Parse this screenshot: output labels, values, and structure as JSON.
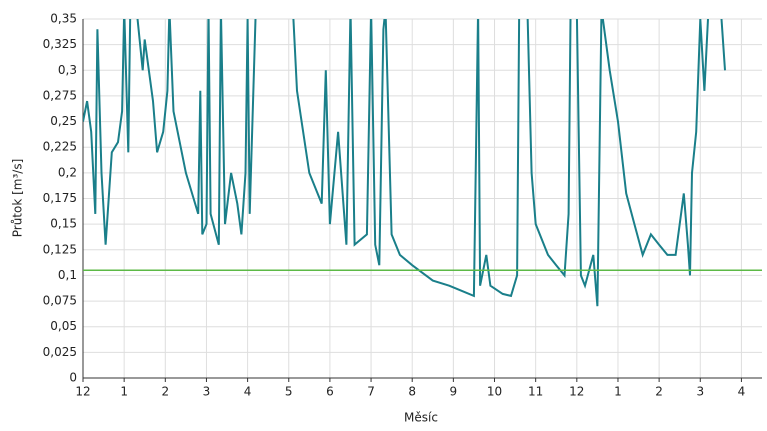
{
  "chart_data": {
    "type": "line",
    "y_label": "Průtok [m³/s]",
    "x_label": "Měsíc",
    "xlim": [
      0,
      16.5
    ],
    "ylim": [
      0,
      0.35
    ],
    "grid": true,
    "xticks": [
      {
        "value": 0,
        "label": "12"
      },
      {
        "value": 1,
        "label": "1"
      },
      {
        "value": 2,
        "label": "2"
      },
      {
        "value": 3,
        "label": "3"
      },
      {
        "value": 4,
        "label": "4"
      },
      {
        "value": 5,
        "label": "5"
      },
      {
        "value": 6,
        "label": "6"
      },
      {
        "value": 7,
        "label": "7"
      },
      {
        "value": 8,
        "label": "8"
      },
      {
        "value": 9,
        "label": "9"
      },
      {
        "value": 10,
        "label": "10"
      },
      {
        "value": 11,
        "label": "11"
      },
      {
        "value": 12,
        "label": "12"
      },
      {
        "value": 13,
        "label": "1"
      },
      {
        "value": 14,
        "label": "2"
      },
      {
        "value": 15,
        "label": "3"
      },
      {
        "value": 16,
        "label": "4"
      }
    ],
    "yticks": [
      0,
      {
        "value": 0.025,
        "label": "0,025"
      },
      {
        "value": 0.05,
        "label": "0,05"
      },
      {
        "value": 0.075,
        "label": "0,075"
      },
      {
        "value": 0.1,
        "label": "0,1"
      },
      {
        "value": 0.125,
        "label": "0,125"
      },
      {
        "value": 0.15,
        "label": "0,15"
      },
      {
        "value": 0.175,
        "label": "0,175"
      },
      {
        "value": 0.2,
        "label": "0,2"
      },
      {
        "value": 0.225,
        "label": "0,225"
      },
      {
        "value": 0.25,
        "label": "0,25"
      },
      {
        "value": 0.275,
        "label": "0,275"
      },
      {
        "value": 0.3,
        "label": "0,3"
      },
      {
        "value": 0.325,
        "label": "0,325"
      },
      {
        "value": 0.35,
        "label": "0,35"
      }
    ],
    "reference_lines": [
      {
        "value": 0.105,
        "color": "#5cb946"
      }
    ],
    "series": [
      {
        "color": "#1a7f8a",
        "x": [
          0,
          0.1,
          0.2,
          0.3,
          0.35,
          0.45,
          0.55,
          0.7,
          0.85,
          0.95,
          1.0,
          1.1,
          1.15,
          1.3,
          1.45,
          1.5,
          1.7,
          1.8,
          1.95,
          2.05,
          2.1,
          2.2,
          2.5,
          2.8,
          2.85,
          2.9,
          3.0,
          3.05,
          3.1,
          3.3,
          3.35,
          3.45,
          3.6,
          3.75,
          3.85,
          3.95,
          4.0,
          4.05,
          4.2,
          5.1,
          5.2,
          5.5,
          5.8,
          5.9,
          6.0,
          6.2,
          6.4,
          6.5,
          6.6,
          6.9,
          7.0,
          7.1,
          7.2,
          7.3,
          7.35,
          7.5,
          7.7,
          8.0,
          8.5,
          8.9,
          9.2,
          9.5,
          9.6,
          9.65,
          9.8,
          9.9,
          10.2,
          10.4,
          10.55,
          10.6,
          10.8,
          10.9,
          11.0,
          11.3,
          11.5,
          11.7,
          11.8,
          11.85,
          12.0,
          12.1,
          12.2,
          12.4,
          12.5,
          12.6,
          12.8,
          13.0,
          13.2,
          13.4,
          13.6,
          13.8,
          14.0,
          14.2,
          14.4,
          14.6,
          14.7,
          14.75,
          14.8,
          14.9,
          15.0,
          15.1,
          15.2,
          15.5,
          15.6
        ],
        "values": [
          0.25,
          0.27,
          0.24,
          0.16,
          0.34,
          0.2,
          0.13,
          0.22,
          0.23,
          0.26,
          0.36,
          0.22,
          0.36,
          0.36,
          0.3,
          0.33,
          0.27,
          0.22,
          0.24,
          0.28,
          0.36,
          0.26,
          0.2,
          0.16,
          0.28,
          0.14,
          0.15,
          0.36,
          0.16,
          0.13,
          0.36,
          0.15,
          0.2,
          0.17,
          0.14,
          0.2,
          0.35,
          0.16,
          0.36,
          0.36,
          0.28,
          0.2,
          0.17,
          0.3,
          0.15,
          0.24,
          0.13,
          0.36,
          0.13,
          0.14,
          0.36,
          0.13,
          0.11,
          0.34,
          0.36,
          0.14,
          0.12,
          0.11,
          0.095,
          0.09,
          0.085,
          0.08,
          0.36,
          0.09,
          0.12,
          0.09,
          0.082,
          0.08,
          0.1,
          0.36,
          0.36,
          0.2,
          0.15,
          0.12,
          0.11,
          0.1,
          0.16,
          0.36,
          0.36,
          0.1,
          0.09,
          0.12,
          0.07,
          0.36,
          0.3,
          0.25,
          0.18,
          0.15,
          0.12,
          0.14,
          0.13,
          0.12,
          0.12,
          0.18,
          0.13,
          0.1,
          0.2,
          0.24,
          0.35,
          0.28,
          0.36,
          0.36,
          0.3
        ]
      }
    ]
  }
}
